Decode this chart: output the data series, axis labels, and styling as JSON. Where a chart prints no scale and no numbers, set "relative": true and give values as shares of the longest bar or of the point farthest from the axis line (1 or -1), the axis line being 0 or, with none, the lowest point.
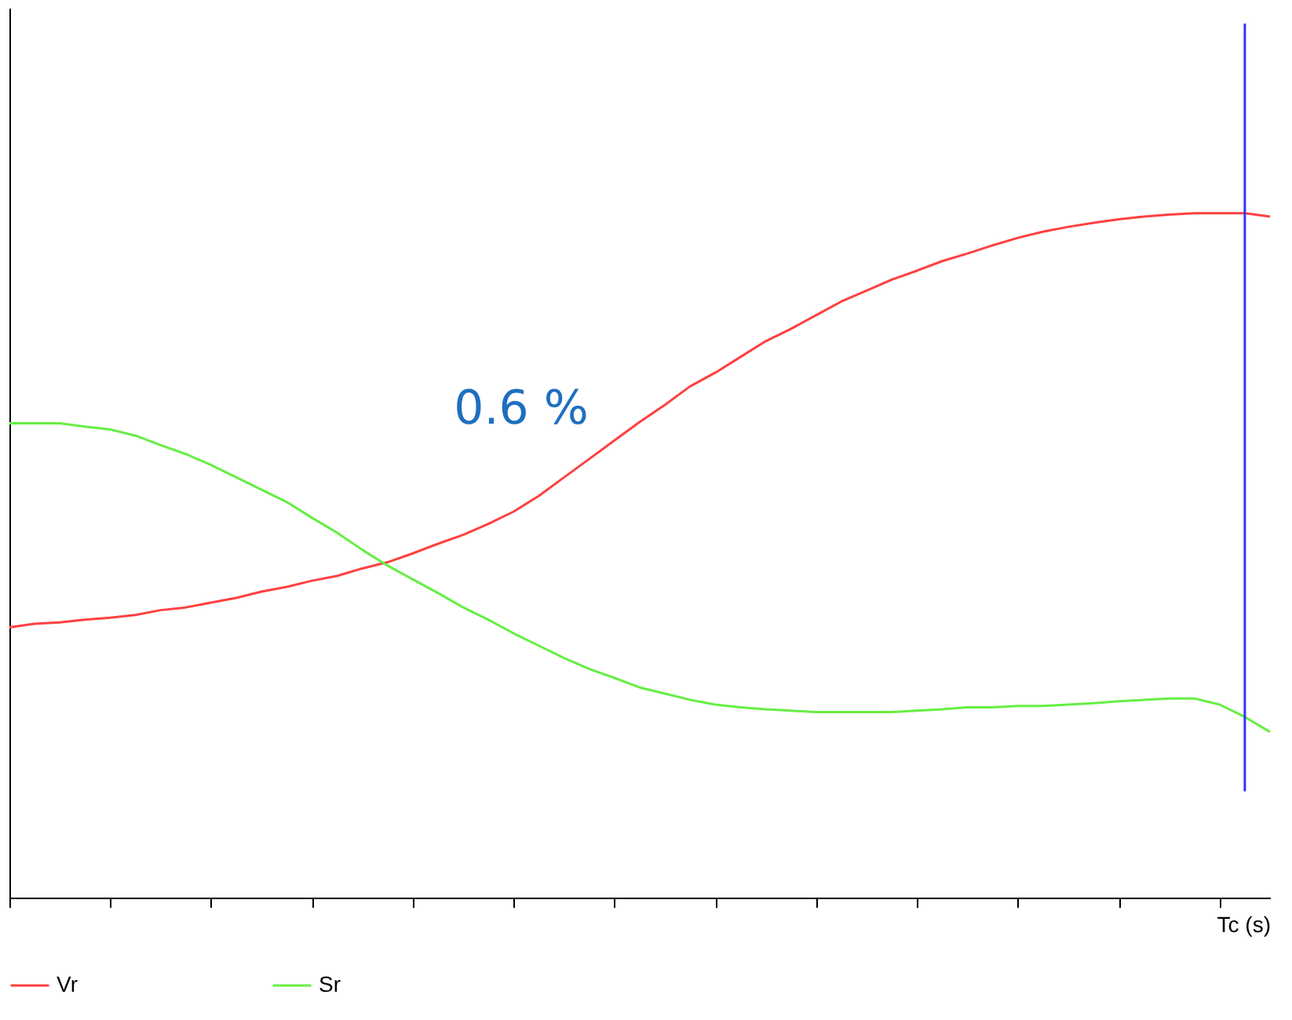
{
  "chart_data": {
    "type": "line",
    "relative": true,
    "xlabel": "Tc (s)",
    "categories": [
      null,
      null,
      null,
      null,
      null,
      null,
      null,
      null,
      null,
      null,
      null,
      null,
      null,
      null,
      null,
      null,
      null,
      null,
      null,
      null,
      null,
      null,
      null,
      null,
      null,
      null,
      null,
      null,
      null,
      null,
      null,
      null,
      null,
      null,
      null,
      null,
      null,
      null,
      null,
      null,
      null,
      null,
      null,
      null,
      null,
      null,
      null,
      null,
      null,
      null,
      null
    ],
    "series": [
      {
        "name": "Vr",
        "color": "#ff4040",
        "values": [
          0.395,
          0.4,
          0.402,
          0.406,
          0.409,
          0.413,
          0.42,
          0.424,
          0.431,
          0.438,
          0.447,
          0.454,
          0.463,
          0.47,
          0.481,
          0.49,
          0.503,
          0.517,
          0.53,
          0.546,
          0.564,
          0.587,
          0.614,
          0.641,
          0.668,
          0.695,
          0.72,
          0.747,
          0.767,
          0.79,
          0.813,
          0.831,
          0.851,
          0.871,
          0.887,
          0.903,
          0.916,
          0.93,
          0.941,
          0.953,
          0.964,
          0.973,
          0.98,
          0.986,
          0.991,
          0.995,
          0.998,
          1,
          1,
          1,
          0.995
        ]
      },
      {
        "name": "Sr",
        "color": "#66ee44",
        "values": [
          0.693,
          0.693,
          0.693,
          0.688,
          0.684,
          0.675,
          0.661,
          0.648,
          0.632,
          0.614,
          0.596,
          0.578,
          0.555,
          0.533,
          0.508,
          0.485,
          0.465,
          0.445,
          0.424,
          0.406,
          0.386,
          0.368,
          0.35,
          0.334,
          0.321,
          0.307,
          0.298,
          0.289,
          0.282,
          0.278,
          0.275,
          0.273,
          0.271,
          0.271,
          0.271,
          0.271,
          0.273,
          0.275,
          0.278,
          0.278,
          0.28,
          0.28,
          0.282,
          0.284,
          0.287,
          0.289,
          0.291,
          0.291,
          0.282,
          0.264,
          0.242
        ]
      }
    ],
    "annotations": [
      "0.6 %"
    ],
    "legend": "bottom",
    "grid": false
  }
}
